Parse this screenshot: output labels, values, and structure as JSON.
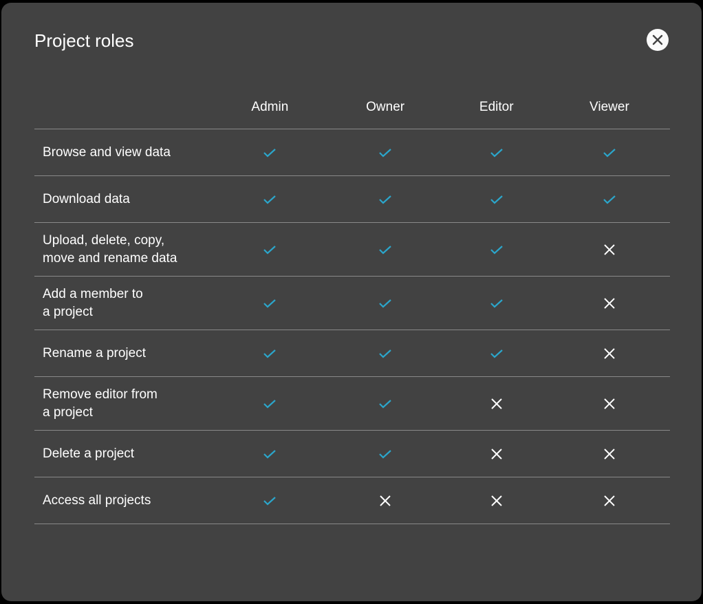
{
  "dialog": {
    "title": "Project roles",
    "close_icon": "close-circle-icon"
  },
  "colors": {
    "check": "#2ba6cb",
    "cross": "#ffffff",
    "background": "#424242"
  },
  "table": {
    "columns": [
      "Admin",
      "Owner",
      "Editor",
      "Viewer"
    ],
    "rows": [
      {
        "label": "Browse and view data",
        "values": [
          true,
          true,
          true,
          true
        ]
      },
      {
        "label": "Download data",
        "values": [
          true,
          true,
          true,
          true
        ]
      },
      {
        "label": "Upload, delete, copy,\nmove and rename data",
        "values": [
          true,
          true,
          true,
          false
        ]
      },
      {
        "label": "Add a member to\na project",
        "values": [
          true,
          true,
          true,
          false
        ]
      },
      {
        "label": "Rename a project",
        "values": [
          true,
          true,
          true,
          false
        ]
      },
      {
        "label": "Remove editor from\na project",
        "values": [
          true,
          true,
          false,
          false
        ]
      },
      {
        "label": "Delete a project",
        "values": [
          true,
          true,
          false,
          false
        ]
      },
      {
        "label": "Access all projects",
        "values": [
          true,
          false,
          false,
          false
        ]
      }
    ]
  }
}
